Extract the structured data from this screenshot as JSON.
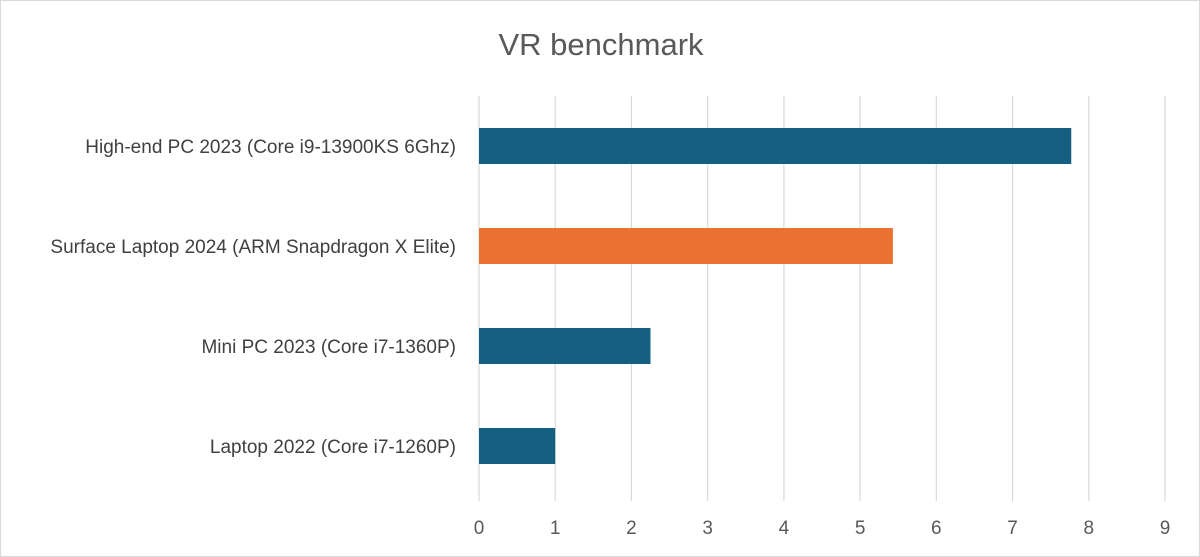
{
  "chart_data": {
    "type": "bar",
    "orientation": "horizontal",
    "title": "VR benchmark",
    "xlabel": "",
    "ylabel": "",
    "xlim": [
      0,
      9
    ],
    "ticks": [
      "0",
      "1",
      "2",
      "3",
      "4",
      "5",
      "6",
      "7",
      "8",
      "9"
    ],
    "grid": true,
    "legend": "none",
    "categories": [
      "High-end PC 2023 (Core i9-13900KS 6Ghz)",
      "Surface Laptop 2024 (ARM Snapdragon X Elite)",
      "Mini PC 2023 (Core i7-1360P)",
      "Laptop 2022 (Core i7-1260P)"
    ],
    "values": [
      7.77,
      5.43,
      2.25,
      1.0
    ],
    "bar_colors": [
      "#156082",
      "#e97132",
      "#156082",
      "#156082"
    ],
    "colors": {
      "primary": "#156082",
      "highlight": "#e97132",
      "grid": "#d9d9d9",
      "text": "#595959"
    }
  }
}
